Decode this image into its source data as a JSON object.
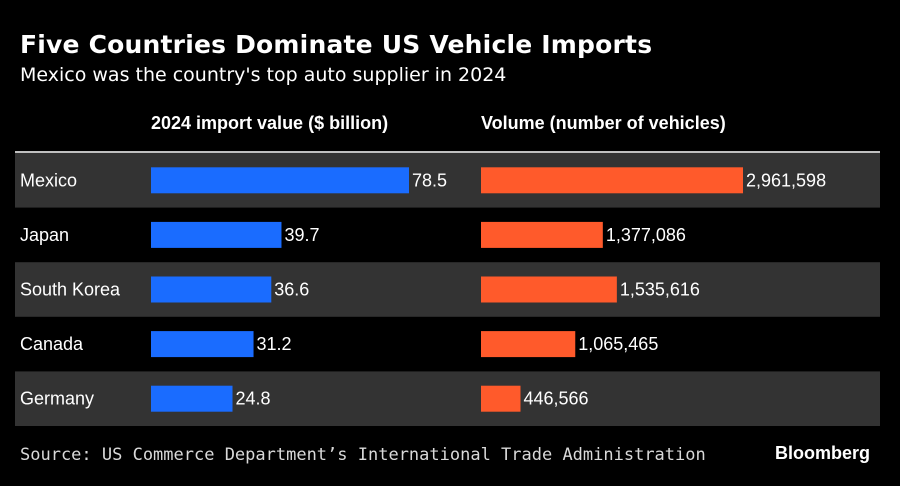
{
  "title": "Five Countries Dominate US Vehicle Imports",
  "subtitle": "Mexico was the country's top auto supplier in 2024",
  "source": "Source: US Commerce Department’s International Trade Administration",
  "brand": "Bloomberg",
  "colors": {
    "background": "#000000",
    "row_band": "#333333",
    "value_bar": "#1a6cff",
    "volume_bar": "#ff5a2b",
    "text": "#ffffff"
  },
  "chart_data": {
    "type": "bar",
    "orientation": "horizontal",
    "categories": [
      "Mexico",
      "Japan",
      "South Korea",
      "Canada",
      "Germany"
    ],
    "series": [
      {
        "name": "2024 import value ($ billion)",
        "values": [
          78.5,
          39.7,
          36.6,
          31.2,
          24.8
        ],
        "labels": [
          "78.5",
          "39.7",
          "36.6",
          "31.2",
          "24.8"
        ]
      },
      {
        "name": "Volume (number of vehicles)",
        "values": [
          2961598,
          1377086,
          1535616,
          1065465,
          446566
        ],
        "labels": [
          "2,961,598",
          "1,377,086",
          "1,535,616",
          "1,065,465",
          "446,566"
        ]
      }
    ]
  }
}
